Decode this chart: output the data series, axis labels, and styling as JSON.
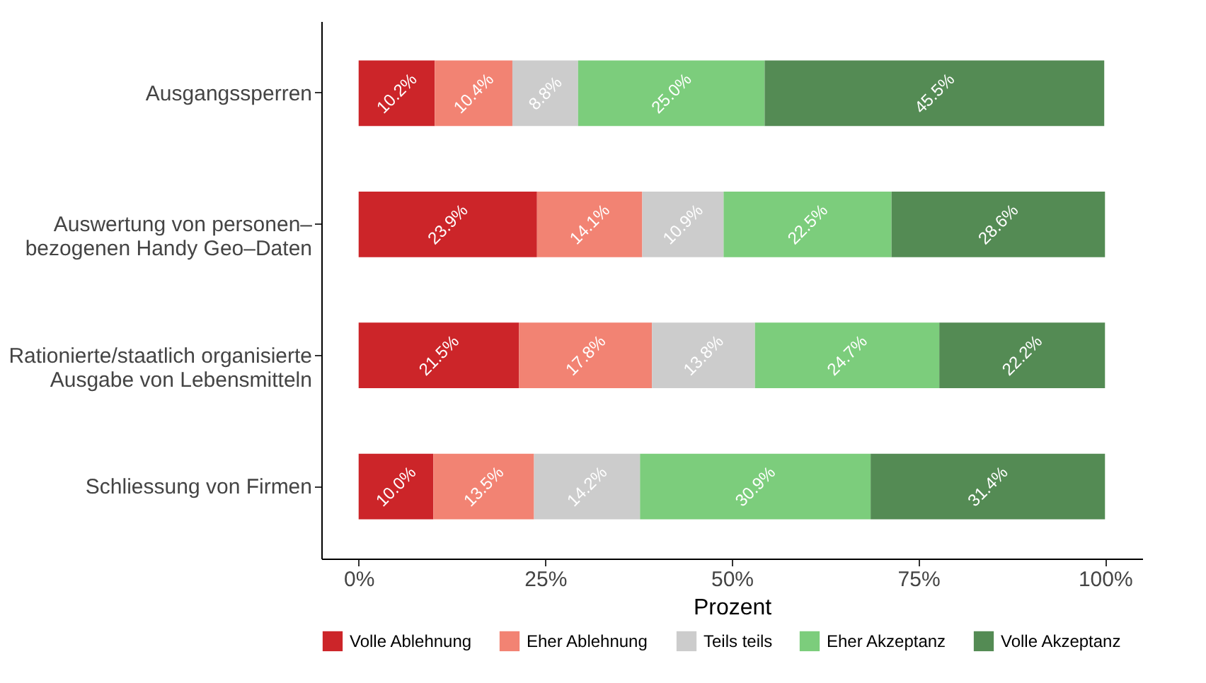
{
  "chart_data": {
    "type": "bar",
    "orientation": "horizontal",
    "stacked": true,
    "xlabel": "Prozent",
    "categories": [
      "Ausgangssperren",
      "Auswertung von personen–\nbezogenen Handy Geo–Daten",
      "Rationierte/staatlich organisierte\nAusgabe von Lebensmitteln",
      "Schliessung von Firmen"
    ],
    "xlim": [
      -5,
      105
    ],
    "xticks": [
      {
        "value": 0,
        "label": "0%"
      },
      {
        "value": 25,
        "label": "25%"
      },
      {
        "value": 50,
        "label": "50%"
      },
      {
        "value": 75,
        "label": "75%"
      },
      {
        "value": 100,
        "label": "100%"
      }
    ],
    "grid": false,
    "legend": "bottom",
    "series": [
      {
        "name": "Volle Ablehnung",
        "color": "#cc2529",
        "values": [
          10.2,
          23.9,
          21.5,
          10.0
        ],
        "value_labels": [
          "10.2%",
          "23.9%",
          "21.5%",
          "10.0%"
        ]
      },
      {
        "name": "Eher Ablehnung",
        "color": "#f28373",
        "values": [
          10.4,
          14.1,
          17.8,
          13.5
        ],
        "value_labels": [
          "10.4%",
          "14.1%",
          "17.8%",
          "13.5%"
        ]
      },
      {
        "name": "Teils teils",
        "color": "#cccccc",
        "values": [
          8.8,
          10.9,
          13.8,
          14.2
        ],
        "value_labels": [
          "8.8%",
          "10.9%",
          "13.8%",
          "14.2%"
        ]
      },
      {
        "name": "Eher Akzeptanz",
        "color": "#7ccd7c",
        "values": [
          25.0,
          22.5,
          24.7,
          30.9
        ],
        "value_labels": [
          "25.0%",
          "22.5%",
          "24.7%",
          "30.9%"
        ]
      },
      {
        "name": "Volle Akzeptanz",
        "color": "#548b54",
        "values": [
          45.5,
          28.6,
          22.2,
          31.4
        ],
        "value_labels": [
          "45.5%",
          "28.6%",
          "22.2%",
          "31.4%"
        ]
      }
    ]
  }
}
